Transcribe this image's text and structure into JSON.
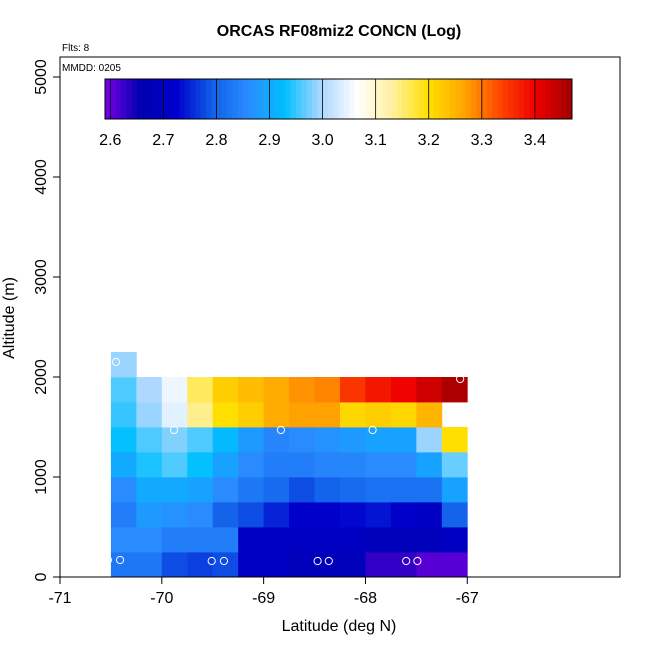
{
  "chart_data": {
    "type": "heatmap",
    "title": "ORCAS RF08miz2 CONCN (Log)",
    "xlabel": "Latitude (deg N)",
    "ylabel": "Altitude (m)",
    "xlim": [
      -71,
      -65.5
    ],
    "ylim": [
      0,
      5200
    ],
    "xticks": [
      -71,
      -70,
      -69,
      -68,
      -67
    ],
    "yticks": [
      0,
      1000,
      2000,
      3000,
      4000,
      5000
    ],
    "annotations": {
      "flights": "Flts: 8",
      "date": "MMDD: 0205"
    },
    "colorbar": {
      "min": 2.59,
      "max": 3.47,
      "ticks": [
        2.6,
        2.7,
        2.8,
        2.9,
        3.0,
        3.1,
        3.2,
        3.3,
        3.4
      ],
      "colors": [
        "#7a00e6",
        "#0000b0",
        "#0000cd",
        "#1060e8",
        "#2a8cff",
        "#00bfff",
        "#aad6ff",
        "#ffffff",
        "#fff0a0",
        "#ffe000",
        "#ffa500",
        "#ff4500",
        "#ee0000",
        "#a00000"
      ]
    },
    "x_bin_starts": [
      -70.5,
      -70.25,
      -70.0,
      -69.75,
      -69.5,
      -69.25,
      -69.0,
      -68.75,
      -68.5,
      -68.25,
      -68.0,
      -67.75,
      -67.5,
      -67.25
    ],
    "bin_width": 0.25,
    "bin_height": 250,
    "cells": [
      {
        "alt": 0,
        "values": [
          2.83,
          2.83,
          2.78,
          2.77,
          2.78,
          2.7,
          2.7,
          2.68,
          2.68,
          2.68,
          2.63,
          2.63,
          2.61,
          2.61
        ]
      },
      {
        "alt": 250,
        "values": [
          2.86,
          2.86,
          2.84,
          2.84,
          2.84,
          2.7,
          2.7,
          2.7,
          2.7,
          2.7,
          2.68,
          2.68,
          2.68,
          2.7
        ]
      },
      {
        "alt": 500,
        "values": [
          2.84,
          2.88,
          2.87,
          2.86,
          2.8,
          2.78,
          2.75,
          2.72,
          2.72,
          2.73,
          2.74,
          2.72,
          2.7,
          2.8
        ]
      },
      {
        "alt": 750,
        "values": [
          2.86,
          2.9,
          2.9,
          2.89,
          2.86,
          2.83,
          2.81,
          2.78,
          2.8,
          2.81,
          2.82,
          2.82,
          2.82,
          2.89
        ]
      },
      {
        "alt": 1000,
        "values": [
          2.9,
          2.94,
          2.96,
          2.93,
          2.89,
          2.86,
          2.84,
          2.84,
          2.85,
          2.85,
          2.86,
          2.86,
          2.89,
          2.97
        ]
      },
      {
        "alt": 1250,
        "values": [
          2.93,
          2.96,
          2.98,
          2.96,
          2.92,
          2.88,
          2.85,
          2.86,
          2.87,
          2.88,
          2.89,
          2.89,
          2.99,
          3.2
        ]
      },
      {
        "alt": 1500,
        "values": [
          2.95,
          2.99,
          3.04,
          3.14,
          3.2,
          3.22,
          3.26,
          3.27,
          3.27,
          3.21,
          3.22,
          3.21,
          3.25,
          null
        ]
      },
      {
        "alt": 1750,
        "values": [
          2.96,
          3.0,
          3.05,
          3.16,
          3.22,
          3.24,
          3.26,
          3.28,
          3.29,
          3.35,
          3.38,
          3.4,
          3.43,
          3.46
        ]
      },
      {
        "alt": 2000,
        "values": [
          2.99,
          null,
          null,
          null,
          null,
          null,
          null,
          null,
          null,
          null,
          null,
          null,
          null,
          null
        ]
      }
    ],
    "sample_points": [
      {
        "lat": -70.45,
        "alt": 2150
      },
      {
        "lat": -69.88,
        "alt": 1470
      },
      {
        "lat": -68.83,
        "alt": 1470
      },
      {
        "lat": -67.93,
        "alt": 1470
      },
      {
        "lat": -67.07,
        "alt": 1980
      },
      {
        "lat": -70.53,
        "alt": 170
      },
      {
        "lat": -70.41,
        "alt": 170
      },
      {
        "lat": -69.51,
        "alt": 160
      },
      {
        "lat": -69.39,
        "alt": 160
      },
      {
        "lat": -68.47,
        "alt": 160
      },
      {
        "lat": -68.36,
        "alt": 160
      },
      {
        "lat": -67.6,
        "alt": 160
      },
      {
        "lat": -67.49,
        "alt": 160
      }
    ]
  }
}
